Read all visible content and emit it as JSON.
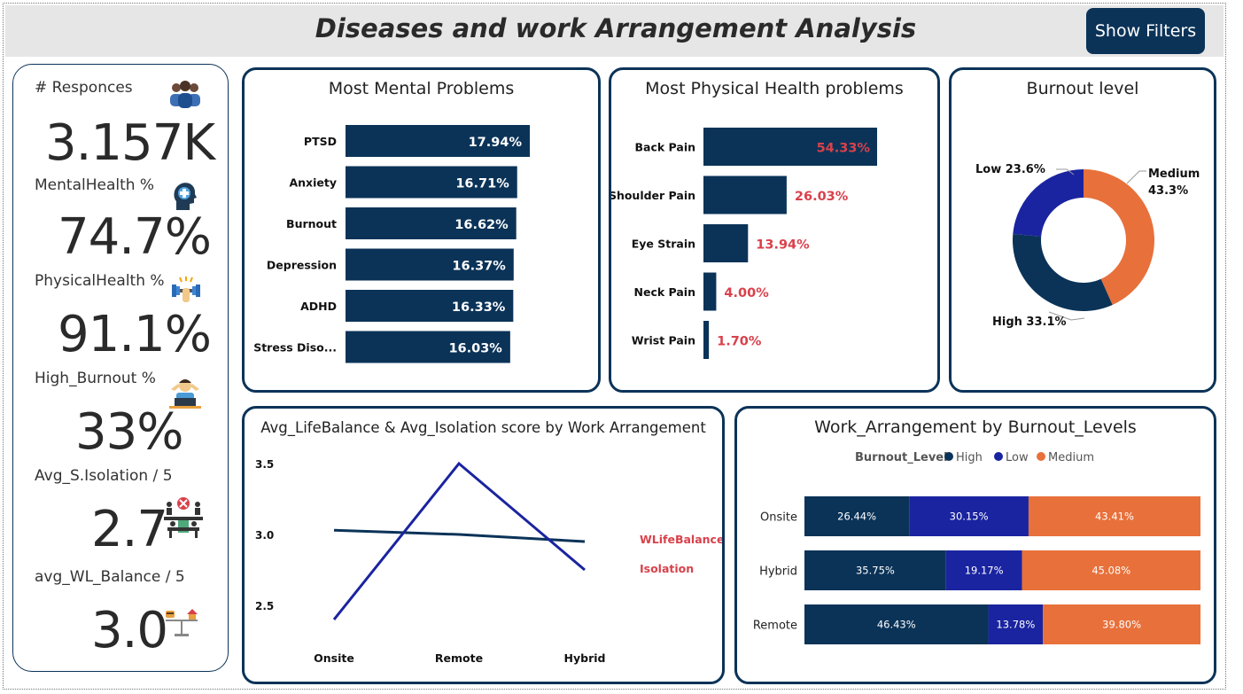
{
  "header": {
    "title": "Diseases and work Arrangement Analysis",
    "filter_label": "Show Filters"
  },
  "kpis": [
    {
      "label": "# Responces",
      "value": "3.157K",
      "icon": "people-group-icon"
    },
    {
      "label": "MentalHealth %",
      "value": "74.7%",
      "icon": "head-medical-icon"
    },
    {
      "label": "PhysicalHealth %",
      "value": "91.1%",
      "icon": "dumbbell-icon"
    },
    {
      "label": "High_Burnout %",
      "value": "33%",
      "icon": "stressed-worker-icon"
    },
    {
      "label": "Avg_S.Isolation / 5",
      "value": "2.7",
      "icon": "isolated-desk-icon"
    },
    {
      "label": "avg_WL_Balance / 5",
      "value": "3.0",
      "icon": "balance-scale-icon"
    }
  ],
  "colors": {
    "navy": "#0b3358",
    "blue": "#1a24a0",
    "orange": "#e8703a",
    "red_label": "#d9414b"
  },
  "chart_data": [
    {
      "type": "bar",
      "title": "Most Mental Problems",
      "categories": [
        "PTSD",
        "Anxiety",
        "Burnout",
        "Depression",
        "ADHD",
        "Stress Diso..."
      ],
      "values": [
        17.94,
        16.71,
        16.62,
        16.37,
        16.33,
        16.03
      ],
      "labels": [
        "17.94%",
        "16.71%",
        "16.62%",
        "16.37%",
        "16.33%",
        "16.03%"
      ],
      "orientation": "horizontal"
    },
    {
      "type": "bar",
      "title": "Most Physical Health problems",
      "categories": [
        "Back Pain",
        "Shoulder Pain",
        "Eye Strain",
        "Neck Pain",
        "Wrist Pain"
      ],
      "values": [
        54.33,
        26.03,
        13.94,
        4.0,
        1.7
      ],
      "labels": [
        "54.33%",
        "26.03%",
        "13.94%",
        "4.00%",
        "1.70%"
      ],
      "orientation": "horizontal"
    },
    {
      "type": "pie",
      "title": "Burnout level",
      "slices": [
        {
          "name": "Medium",
          "value": 43.3,
          "label": "43.3%"
        },
        {
          "name": "High",
          "value": 33.1,
          "label": "33.1%"
        },
        {
          "name": "Low",
          "value": 23.6,
          "label": "23.6%"
        }
      ]
    },
    {
      "type": "line",
      "title": "Avg_LifeBalance & Avg_Isolation score by Work Arrangement",
      "categories": [
        "Onsite",
        "Remote",
        "Hybrid"
      ],
      "y_ticks": [
        "3.5",
        "3.0",
        "2.5"
      ],
      "ylim": [
        2.5,
        3.5
      ],
      "series": [
        {
          "name": "WLifeBalance",
          "values": [
            3.03,
            3.0,
            2.95
          ]
        },
        {
          "name": "Isolation",
          "values": [
            2.4,
            3.5,
            2.75
          ]
        }
      ]
    },
    {
      "type": "bar",
      "title": "Work_Arrangement by Burnout_Levels",
      "legend_title": "Burnout_Level",
      "legend_items": [
        "High",
        "Low",
        "Medium"
      ],
      "categories": [
        "Onsite",
        "Hybrid",
        "Remote"
      ],
      "stacked": true,
      "series": [
        {
          "name": "High",
          "values": [
            26.44,
            35.75,
            46.43
          ],
          "labels": [
            "26.44%",
            "35.75%",
            "46.43%"
          ]
        },
        {
          "name": "Low",
          "values": [
            30.15,
            19.17,
            13.78
          ],
          "labels": [
            "30.15%",
            "19.17%",
            "13.78%"
          ]
        },
        {
          "name": "Medium",
          "values": [
            43.41,
            45.08,
            39.8
          ],
          "labels": [
            "43.41%",
            "45.08%",
            "39.80%"
          ]
        }
      ]
    }
  ]
}
